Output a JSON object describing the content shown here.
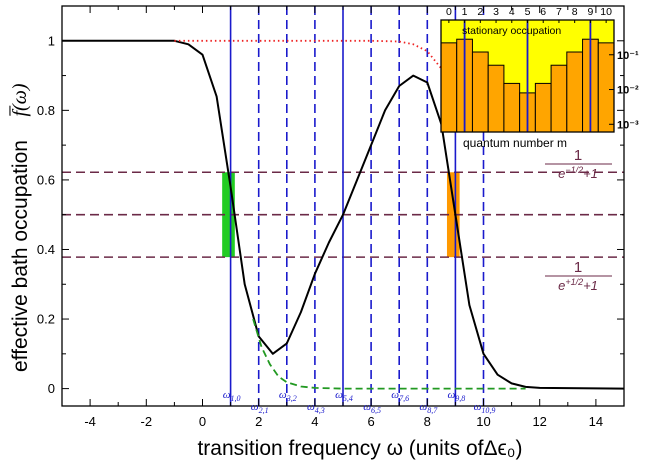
{
  "chart_data": [
    {
      "type": "line",
      "title": "",
      "xlabel": "transition frequency  ω  (units ofΔϵ₀)",
      "ylabel": "effective bath occupation",
      "ylabel_symbol": "f̅(ω)",
      "xlim": [
        -5,
        15
      ],
      "ylim": [
        -0.05,
        1.1
      ],
      "xticks": [
        -4,
        -2,
        0,
        2,
        4,
        6,
        8,
        10,
        12,
        14
      ],
      "xtick_labels": [
        "-4",
        "-2",
        "0",
        "2",
        "4",
        "6",
        "8",
        "10",
        "12",
        "14"
      ],
      "yticks": [
        0,
        0.2,
        0.4,
        0.6,
        0.8,
        1.0
      ],
      "ytick_labels": [
        "0",
        "0.2",
        "0.4",
        "0.6",
        "0.8",
        "1"
      ],
      "grid": false,
      "series": [
        {
          "style": "solid",
          "color": "#000000",
          "x": [
            -5,
            -1,
            -0.5,
            0,
            0.5,
            1,
            1.5,
            2,
            2.5,
            3,
            3.5,
            4,
            4.5,
            5,
            5.5,
            6,
            6.5,
            7,
            7.5,
            8,
            8.5,
            9,
            9.5,
            10,
            10.5,
            11,
            11.5,
            12,
            15
          ],
          "y": [
            1.0,
            1.0,
            0.99,
            0.96,
            0.84,
            0.58,
            0.3,
            0.15,
            0.1,
            0.13,
            0.22,
            0.33,
            0.42,
            0.5,
            0.6,
            0.7,
            0.8,
            0.87,
            0.9,
            0.88,
            0.76,
            0.5,
            0.24,
            0.1,
            0.04,
            0.015,
            0.005,
            0.002,
            0.0
          ]
        },
        {
          "style": "dotted",
          "color": "#ee2222",
          "x": [
            -1,
            0,
            2,
            4,
            6,
            7,
            7.5,
            8,
            8.5,
            9,
            9.2
          ],
          "y": [
            1.0,
            1.0,
            1.0,
            1.0,
            1.0,
            0.998,
            0.99,
            0.97,
            0.92,
            0.82,
            0.78
          ]
        },
        {
          "style": "dashed",
          "color": "#229922",
          "x": [
            1.8,
            2.1,
            2.4,
            2.7,
            3.0,
            3.5,
            4.0,
            5,
            6,
            8,
            10,
            11.5
          ],
          "y": [
            0.2,
            0.12,
            0.07,
            0.035,
            0.018,
            0.006,
            0.002,
            0.0,
            0.0,
            0.0,
            0.0,
            0.0
          ]
        }
      ],
      "horizontal_lines": [
        {
          "y": 0.622,
          "style": "dashed",
          "color": "#6b2a47"
        },
        {
          "y": 0.5,
          "style": "dashed",
          "color": "#6b2a47"
        },
        {
          "y": 0.378,
          "style": "dashed",
          "color": "#6b2a47"
        }
      ],
      "vertical_lines": [
        {
          "x": 1,
          "style": "solid",
          "label": "ω1,0"
        },
        {
          "x": 2,
          "style": "dashed",
          "label": "ω2,1"
        },
        {
          "x": 3,
          "style": "dashed",
          "label": "ω3,2"
        },
        {
          "x": 4,
          "style": "dashed",
          "label": "ω4,3"
        },
        {
          "x": 5,
          "style": "solid",
          "label": "ω5,4"
        },
        {
          "x": 6,
          "style": "dashed",
          "label": "ω6,5"
        },
        {
          "x": 7,
          "style": "dashed",
          "label": "ω7,6"
        },
        {
          "x": 8,
          "style": "dashed",
          "label": "ω8,7"
        },
        {
          "x": 9,
          "style": "solid",
          "label": "ω9,8"
        },
        {
          "x": 10,
          "style": "dashed",
          "label": "ω10,9"
        }
      ],
      "shaded_bars": [
        {
          "x0": 0.7,
          "x1": 1.15,
          "y0": 0.378,
          "y1": 0.622,
          "color": "#22cc22"
        },
        {
          "x0": 8.7,
          "x1": 9.15,
          "y0": 0.378,
          "y1": 0.622,
          "color": "#ff9900"
        }
      ],
      "annotations": [
        {
          "text": "1 / (e^{-1/2}+1)",
          "near_y": 0.622
        },
        {
          "text": "1 / (e^{+1/2}+1)",
          "near_y": 0.378
        }
      ],
      "line_color": "#1a1acc"
    },
    {
      "type": "bar",
      "title": "stationary occupation",
      "xlabel": "quantum number m",
      "ylabel": "",
      "categories": [
        "0",
        "1",
        "2",
        "3",
        "4",
        "5",
        "6",
        "7",
        "8",
        "9",
        "10"
      ],
      "values": [
        0.22,
        0.28,
        0.12,
        0.05,
        0.015,
        0.008,
        0.015,
        0.05,
        0.12,
        0.28,
        0.22
      ],
      "yscale": "log",
      "ylim": [
        0.0006,
        1
      ],
      "yticks": [
        0.001,
        0.01,
        0.1
      ],
      "ytick_labels": [
        "10⁻³",
        "10⁻²",
        "10⁻¹"
      ],
      "bar_color": "#ffa500",
      "background_color": "#ffff00",
      "marker_lines": [
        1,
        5,
        9
      ],
      "legend": "none"
    }
  ]
}
